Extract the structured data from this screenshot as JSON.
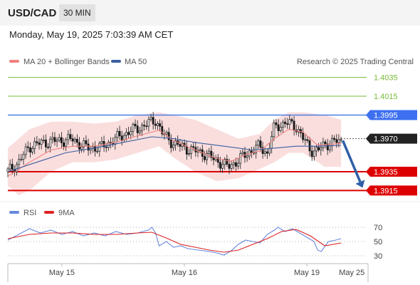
{
  "header": {
    "pair": "USD/CAD",
    "timeframe": "30 MIN"
  },
  "timestamp": "Monday, May 19, 2025 7:03:39 AM CET",
  "legend": {
    "ma20": "MA 20 + Bollinger Bands",
    "ma50": "MA 50",
    "copyright": "Research © 2025 Trading Central",
    "rsi": "RSI",
    "rsi_ma": "9MA"
  },
  "colors": {
    "bollinger": "#f5b5b5",
    "ma20": "#f08080",
    "ma50": "#3a5fa0",
    "candle": "#1a1a1a",
    "resistance": "#7aba3a",
    "pivot": "#4a7fe6",
    "support": "#dd0000",
    "rsi": "#6688dd",
    "rsi_ma": "#dd2222",
    "arrow": "#2f5fa6"
  },
  "chart_data": [
    {
      "type": "candlestick",
      "levels": [
        {
          "label": "1.4035",
          "value": 1.4035,
          "kind": "resistance"
        },
        {
          "label": "1.4015",
          "value": 1.4015,
          "kind": "resistance"
        },
        {
          "label": "1.3995",
          "value": 1.3995,
          "kind": "pivot"
        },
        {
          "label": "1.3970",
          "value": 1.397,
          "kind": "last"
        },
        {
          "label": "1.3935",
          "value": 1.3935,
          "kind": "support"
        },
        {
          "label": "1.3915",
          "value": 1.3915,
          "kind": "support"
        }
      ],
      "ylim": [
        1.3904,
        1.4046
      ],
      "xlim": [
        0,
        100
      ],
      "x_ticks": [
        {
          "label": "May 15",
          "x": 15
        },
        {
          "label": "May 16",
          "x": 49
        },
        {
          "label": "May 19",
          "x": 83
        },
        {
          "label": "May 25",
          "x": 95.5
        }
      ],
      "close_path": [
        [
          0,
          1.3935
        ],
        [
          3,
          1.3945
        ],
        [
          6,
          1.3962
        ],
        [
          10,
          1.3966
        ],
        [
          14,
          1.3968
        ],
        [
          18,
          1.3969
        ],
        [
          22,
          1.396
        ],
        [
          26,
          1.3961
        ],
        [
          30,
          1.397
        ],
        [
          34,
          1.3978
        ],
        [
          38,
          1.3984
        ],
        [
          41,
          1.399
        ],
        [
          43,
          1.3975
        ],
        [
          46,
          1.3965
        ],
        [
          50,
          1.3959
        ],
        [
          54,
          1.3955
        ],
        [
          58,
          1.3947
        ],
        [
          61,
          1.394
        ],
        [
          64,
          1.3947
        ],
        [
          67,
          1.3956
        ],
        [
          70,
          1.3962
        ],
        [
          72,
          1.3954
        ],
        [
          74,
          1.3982
        ],
        [
          77,
          1.3987
        ],
        [
          80,
          1.3983
        ],
        [
          82,
          1.397
        ],
        [
          84,
          1.3958
        ],
        [
          86,
          1.3957
        ],
        [
          88,
          1.3964
        ],
        [
          91,
          1.3967
        ],
        [
          92.5,
          1.3967
        ]
      ],
      "ma20": [
        [
          0,
          1.393
        ],
        [
          6,
          1.3945
        ],
        [
          12,
          1.3958
        ],
        [
          18,
          1.3962
        ],
        [
          24,
          1.3962
        ],
        [
          30,
          1.3966
        ],
        [
          36,
          1.3973
        ],
        [
          42,
          1.3979
        ],
        [
          46,
          1.3968
        ],
        [
          52,
          1.3958
        ],
        [
          58,
          1.3949
        ],
        [
          62,
          1.3946
        ],
        [
          66,
          1.3953
        ],
        [
          70,
          1.3957
        ],
        [
          74,
          1.397
        ],
        [
          78,
          1.398
        ],
        [
          82,
          1.3977
        ],
        [
          86,
          1.3963
        ],
        [
          92.5,
          1.3965
        ]
      ],
      "ma50": [
        [
          0,
          1.3935
        ],
        [
          8,
          1.3945
        ],
        [
          16,
          1.3955
        ],
        [
          24,
          1.396
        ],
        [
          32,
          1.3966
        ],
        [
          40,
          1.3972
        ],
        [
          46,
          1.397
        ],
        [
          52,
          1.3966
        ],
        [
          60,
          1.3962
        ],
        [
          68,
          1.3958
        ],
        [
          74,
          1.396
        ],
        [
          80,
          1.3962
        ],
        [
          86,
          1.3962
        ],
        [
          92.5,
          1.3963
        ]
      ],
      "bollinger_upper": [
        [
          0,
          1.396
        ],
        [
          6,
          1.398
        ],
        [
          12,
          1.3988
        ],
        [
          18,
          1.3988
        ],
        [
          24,
          1.3986
        ],
        [
          30,
          1.3988
        ],
        [
          36,
          1.3995
        ],
        [
          42,
          1.3998
        ],
        [
          46,
          1.3995
        ],
        [
          52,
          1.399
        ],
        [
          58,
          1.398
        ],
        [
          64,
          1.397
        ],
        [
          70,
          1.3975
        ],
        [
          74,
          1.399
        ],
        [
          78,
          1.3998
        ],
        [
          82,
          1.3998
        ],
        [
          88,
          1.3995
        ],
        [
          92.5,
          1.399
        ]
      ],
      "bollinger_lower": [
        [
          0,
          1.392
        ],
        [
          3,
          1.391
        ],
        [
          6,
          1.3915
        ],
        [
          12,
          1.3935
        ],
        [
          18,
          1.3945
        ],
        [
          24,
          1.3945
        ],
        [
          30,
          1.3948
        ],
        [
          36,
          1.3955
        ],
        [
          42,
          1.3962
        ],
        [
          46,
          1.395
        ],
        [
          52,
          1.3935
        ],
        [
          58,
          1.3925
        ],
        [
          64,
          1.3928
        ],
        [
          70,
          1.3938
        ],
        [
          74,
          1.3945
        ],
        [
          78,
          1.3955
        ],
        [
          82,
          1.3955
        ],
        [
          88,
          1.394
        ],
        [
          92.5,
          1.394
        ]
      ],
      "forecast_arrow": {
        "from": [
          93,
          1.3968
        ],
        "to": [
          98.5,
          1.3918
        ]
      }
    },
    {
      "type": "line",
      "legend": [
        "RSI",
        "9MA"
      ],
      "ylim": [
        25,
        75
      ],
      "y_ticks": [
        70,
        50,
        30
      ],
      "rsi": [
        [
          0,
          52
        ],
        [
          3,
          60
        ],
        [
          6,
          68
        ],
        [
          9,
          62
        ],
        [
          12,
          66
        ],
        [
          15,
          60
        ],
        [
          18,
          64
        ],
        [
          21,
          58
        ],
        [
          24,
          62
        ],
        [
          27,
          58
        ],
        [
          30,
          64
        ],
        [
          33,
          60
        ],
        [
          36,
          62
        ],
        [
          39,
          66
        ],
        [
          40,
          70
        ],
        [
          41,
          62
        ],
        [
          42,
          44
        ],
        [
          44,
          50
        ],
        [
          46,
          42
        ],
        [
          48,
          44
        ],
        [
          50,
          40
        ],
        [
          53,
          38
        ],
        [
          56,
          36
        ],
        [
          58,
          34
        ],
        [
          60,
          31
        ],
        [
          62,
          37
        ],
        [
          64,
          46
        ],
        [
          66,
          52
        ],
        [
          68,
          50
        ],
        [
          70,
          48
        ],
        [
          72,
          60
        ],
        [
          74,
          66
        ],
        [
          75,
          70
        ],
        [
          77,
          64
        ],
        [
          79,
          68
        ],
        [
          81,
          62
        ],
        [
          83,
          56
        ],
        [
          85,
          50
        ],
        [
          86,
          38
        ],
        [
          87,
          36
        ],
        [
          89,
          50
        ],
        [
          91,
          52
        ],
        [
          92.5,
          54
        ]
      ],
      "rsi_ma": [
        [
          0,
          54
        ],
        [
          6,
          60
        ],
        [
          12,
          62
        ],
        [
          18,
          62
        ],
        [
          24,
          60
        ],
        [
          30,
          60
        ],
        [
          36,
          62
        ],
        [
          40,
          63
        ],
        [
          44,
          55
        ],
        [
          48,
          46
        ],
        [
          52,
          42
        ],
        [
          56,
          38
        ],
        [
          60,
          35
        ],
        [
          64,
          38
        ],
        [
          68,
          46
        ],
        [
          72,
          54
        ],
        [
          76,
          64
        ],
        [
          80,
          67
        ],
        [
          84,
          58
        ],
        [
          88,
          44
        ],
        [
          92.5,
          48
        ]
      ]
    }
  ]
}
